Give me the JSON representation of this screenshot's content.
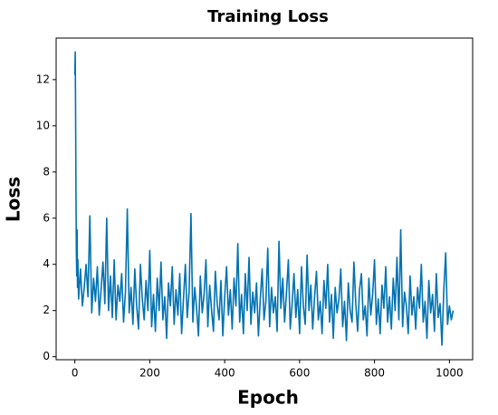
{
  "chart_data": {
    "type": "line",
    "title": "Training Loss",
    "xlabel": "Epoch",
    "ylabel": "Loss",
    "x": [
      0,
      1,
      2,
      3,
      4,
      5,
      6,
      7,
      8,
      10,
      15,
      20,
      25,
      30,
      35,
      40,
      45,
      50,
      55,
      60,
      65,
      70,
      75,
      80,
      85,
      90,
      95,
      100,
      105,
      110,
      115,
      120,
      125,
      130,
      135,
      140,
      145,
      150,
      155,
      160,
      165,
      170,
      175,
      180,
      185,
      190,
      195,
      200,
      205,
      210,
      215,
      220,
      225,
      230,
      235,
      240,
      245,
      250,
      255,
      260,
      265,
      270,
      275,
      280,
      285,
      290,
      295,
      300,
      305,
      310,
      315,
      320,
      325,
      330,
      335,
      340,
      345,
      350,
      355,
      360,
      365,
      370,
      375,
      380,
      385,
      390,
      395,
      400,
      405,
      410,
      415,
      420,
      425,
      430,
      435,
      440,
      445,
      450,
      455,
      460,
      465,
      470,
      475,
      480,
      485,
      490,
      495,
      500,
      505,
      510,
      515,
      520,
      525,
      530,
      535,
      540,
      545,
      550,
      555,
      560,
      565,
      570,
      575,
      580,
      585,
      590,
      595,
      600,
      605,
      610,
      615,
      620,
      625,
      630,
      635,
      640,
      645,
      650,
      655,
      660,
      665,
      670,
      675,
      680,
      685,
      690,
      695,
      700,
      705,
      710,
      715,
      720,
      725,
      730,
      735,
      740,
      745,
      750,
      755,
      760,
      765,
      770,
      775,
      780,
      785,
      790,
      795,
      800,
      805,
      810,
      815,
      820,
      825,
      830,
      835,
      840,
      845,
      850,
      855,
      860,
      865,
      870,
      875,
      880,
      885,
      890,
      895,
      900,
      905,
      910,
      915,
      920,
      925,
      930,
      935,
      940,
      945,
      950,
      955,
      960,
      965,
      970,
      975,
      980,
      985,
      990,
      995,
      1000,
      1005,
      1010
    ],
    "series": [
      {
        "name": "Loss",
        "color": "#0072b2",
        "values": [
          12.2,
          13.2,
          10.5,
          7.0,
          4.5,
          3.5,
          5.5,
          3.0,
          4.2,
          2.5,
          3.8,
          2.2,
          3.0,
          4.0,
          2.6,
          6.1,
          1.9,
          3.4,
          2.4,
          3.9,
          1.8,
          2.9,
          4.1,
          2.3,
          6.0,
          2.0,
          3.5,
          1.7,
          4.2,
          1.6,
          3.1,
          2.4,
          3.6,
          1.5,
          2.8,
          6.4,
          1.9,
          3.0,
          1.4,
          3.8,
          2.2,
          1.2,
          4.0,
          2.5,
          1.6,
          3.3,
          2.0,
          4.6,
          1.3,
          2.7,
          1.1,
          3.4,
          2.0,
          4.1,
          1.6,
          2.6,
          0.8,
          3.2,
          2.2,
          3.9,
          1.4,
          2.9,
          1.8,
          3.6,
          1.0,
          2.5,
          4.0,
          1.7,
          2.8,
          6.2,
          1.5,
          3.0,
          2.1,
          0.9,
          3.5,
          1.9,
          2.7,
          4.2,
          1.3,
          3.1,
          2.0,
          1.1,
          3.7,
          2.3,
          1.6,
          3.3,
          0.9,
          2.6,
          3.9,
          1.8,
          2.9,
          1.2,
          3.4,
          2.2,
          4.9,
          1.5,
          2.7,
          1.0,
          3.6,
          2.0,
          4.3,
          1.4,
          2.8,
          1.9,
          3.2,
          0.9,
          2.5,
          3.8,
          1.6,
          2.4,
          4.7,
          1.3,
          3.0,
          1.9,
          2.6,
          1.1,
          5.0,
          2.1,
          3.4,
          1.5,
          2.8,
          4.2,
          1.2,
          2.3,
          3.6,
          1.7,
          2.9,
          1.0,
          3.9,
          2.2,
          1.4,
          4.4,
          2.0,
          3.1,
          1.2,
          2.6,
          3.7,
          1.6,
          2.4,
          1.0,
          3.3,
          2.1,
          4.0,
          1.5,
          2.7,
          0.8,
          3.0,
          1.9,
          2.5,
          3.8,
          1.3,
          2.4,
          0.7,
          3.2,
          2.0,
          1.5,
          4.1,
          2.3,
          1.1,
          2.9,
          3.6,
          1.6,
          2.2,
          0.9,
          3.4,
          1.8,
          2.7,
          4.2,
          1.4,
          2.5,
          1.0,
          3.1,
          2.1,
          3.9,
          1.5,
          2.6,
          1.2,
          3.4,
          2.0,
          4.3,
          1.6,
          5.5,
          1.3,
          2.8,
          2.2,
          1.0,
          3.5,
          1.8,
          2.6,
          1.2,
          3.0,
          2.1,
          4.0,
          1.5,
          2.4,
          0.8,
          3.3,
          1.9,
          2.7,
          1.1,
          3.6,
          1.7,
          2.3,
          0.5,
          2.9,
          4.5,
          1.4,
          2.2,
          1.6,
          2.0
        ]
      }
    ],
    "xlim": [
      -50,
      1062
    ],
    "ylim": [
      -0.13,
      13.8
    ],
    "xticks": [
      0,
      200,
      400,
      600,
      800,
      1000
    ],
    "yticks": [
      0,
      2,
      4,
      6,
      8,
      10,
      12
    ]
  }
}
